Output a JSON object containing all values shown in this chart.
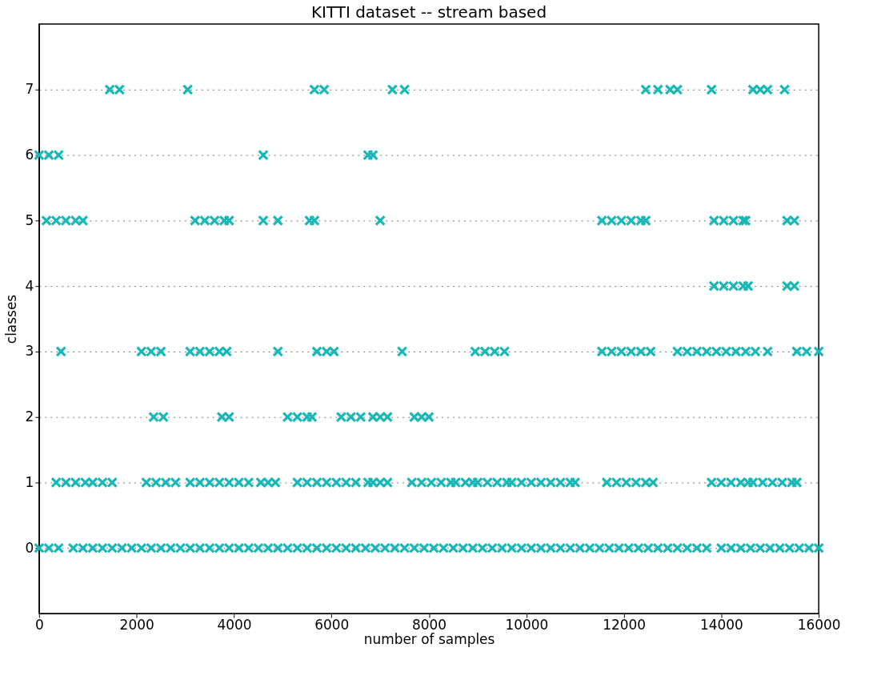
{
  "chart_data": {
    "type": "scatter",
    "title": "KITTI dataset -- stream based",
    "xlabel": "number of samples",
    "ylabel": "classes",
    "xlim": [
      0,
      16000
    ],
    "xticks": [
      0,
      2000,
      4000,
      6000,
      8000,
      10000,
      12000,
      14000,
      16000
    ],
    "ylim": [
      -1,
      8
    ],
    "yticks": [
      0,
      1,
      2,
      3,
      4,
      5,
      6,
      7
    ],
    "grid": "y",
    "marker": "cross",
    "legend": false,
    "series": [
      {
        "color": "#19b8b8",
        "x": [
          0,
          200,
          400,
          700,
          900,
          1100,
          1300,
          1500,
          1700,
          1900,
          2100,
          2300,
          2500,
          2700,
          2900,
          3100,
          3300,
          3500,
          3700,
          3900,
          4100,
          4300,
          4500,
          4700,
          4900,
          5100,
          5300,
          5500,
          5700,
          5900,
          6100,
          6300,
          6500,
          6700,
          6900,
          7100,
          7300,
          7500,
          7700,
          7900,
          8100,
          8300,
          8500,
          8700,
          8900,
          9100,
          9300,
          9500,
          9700,
          9900,
          10100,
          10300,
          10500,
          10700,
          10900,
          11100,
          11300,
          11500,
          11700,
          11900,
          12100,
          12300,
          12500,
          12700,
          12900,
          13100,
          13300,
          13500,
          13700,
          14000,
          14200,
          14400,
          14600,
          14800,
          15000,
          15200,
          15400,
          15600,
          15800,
          16000
        ],
        "values": [
          0,
          0,
          0,
          0,
          0,
          0,
          0,
          0,
          0,
          0,
          0,
          0,
          0,
          0,
          0,
          0,
          0,
          0,
          0,
          0,
          0,
          0,
          0,
          0,
          0,
          0,
          0,
          0,
          0,
          0,
          0,
          0,
          0,
          0,
          0,
          0,
          0,
          0,
          0,
          0,
          0,
          0,
          0,
          0,
          0,
          0,
          0,
          0,
          0,
          0,
          0,
          0,
          0,
          0,
          0,
          0,
          0,
          0,
          0,
          0,
          0,
          0,
          0,
          0,
          0,
          0,
          0,
          0,
          0,
          0,
          0,
          0,
          0,
          0,
          0,
          0,
          0,
          0,
          0,
          0
        ]
      },
      {
        "color": "#19b8b8",
        "x": [
          350,
          550,
          750,
          950,
          1100,
          1300,
          1500,
          2200,
          2400,
          2600,
          2800,
          3100,
          3300,
          3500,
          3700,
          3900,
          4100,
          4300,
          4550,
          4700,
          4850,
          5300,
          5500,
          5700,
          5900,
          6100,
          6300,
          6500,
          6750,
          6850,
          7000,
          7150,
          7650,
          7850,
          8050,
          8250,
          8450,
          8550,
          8750,
          8900,
          9000,
          9200,
          9400,
          9600,
          9700,
          9900,
          10100,
          10300,
          10500,
          10700,
          10900,
          11000,
          11650,
          11850,
          12050,
          12250,
          12450,
          12600,
          13800,
          14000,
          14200,
          14400,
          14550,
          14650,
          14850,
          15050,
          15250,
          15450,
          15550
        ],
        "values": [
          1,
          1,
          1,
          1,
          1,
          1,
          1,
          1,
          1,
          1,
          1,
          1,
          1,
          1,
          1,
          1,
          1,
          1,
          1,
          1,
          1,
          1,
          1,
          1,
          1,
          1,
          1,
          1,
          1,
          1,
          1,
          1,
          1,
          1,
          1,
          1,
          1,
          1,
          1,
          1,
          1,
          1,
          1,
          1,
          1,
          1,
          1,
          1,
          1,
          1,
          1,
          1,
          1,
          1,
          1,
          1,
          1,
          1,
          1,
          1,
          1,
          1,
          1,
          1,
          1,
          1,
          1,
          1,
          1
        ]
      },
      {
        "color": "#19b8b8",
        "x": [
          2350,
          2550,
          3750,
          3900,
          5100,
          5300,
          5500,
          5600,
          6200,
          6400,
          6600,
          6850,
          7000,
          7150,
          7700,
          7850,
          8000
        ],
        "values": [
          2,
          2,
          2,
          2,
          2,
          2,
          2,
          2,
          2,
          2,
          2,
          2,
          2,
          2,
          2,
          2,
          2
        ]
      },
      {
        "color": "#19b8b8",
        "x": [
          450,
          2100,
          2300,
          2500,
          3100,
          3300,
          3500,
          3700,
          3850,
          4900,
          5700,
          5900,
          6050,
          7450,
          8950,
          9150,
          9350,
          9550,
          11550,
          11750,
          11950,
          12150,
          12350,
          12550,
          13100,
          13300,
          13500,
          13700,
          13900,
          14100,
          14300,
          14500,
          14700,
          14950,
          15550,
          15750,
          16000
        ],
        "values": [
          3,
          3,
          3,
          3,
          3,
          3,
          3,
          3,
          3,
          3,
          3,
          3,
          3,
          3,
          3,
          3,
          3,
          3,
          3,
          3,
          3,
          3,
          3,
          3,
          3,
          3,
          3,
          3,
          3,
          3,
          3,
          3,
          3,
          3,
          3,
          3,
          3
        ]
      },
      {
        "color": "#19b8b8",
        "x": [
          13850,
          14050,
          14250,
          14450,
          14550,
          15350,
          15500
        ],
        "values": [
          4,
          4,
          4,
          4,
          4,
          4,
          4
        ]
      },
      {
        "color": "#19b8b8",
        "x": [
          150,
          350,
          550,
          750,
          900,
          3200,
          3400,
          3600,
          3800,
          3900,
          4600,
          4900,
          5550,
          5650,
          7000,
          11550,
          11750,
          11950,
          12150,
          12350,
          12450,
          13850,
          14050,
          14250,
          14450,
          14500,
          15350,
          15500
        ],
        "values": [
          5,
          5,
          5,
          5,
          5,
          5,
          5,
          5,
          5,
          5,
          5,
          5,
          5,
          5,
          5,
          5,
          5,
          5,
          5,
          5,
          5,
          5,
          5,
          5,
          5,
          5,
          5,
          5
        ]
      },
      {
        "color": "#19b8b8",
        "x": [
          0,
          200,
          400,
          4600,
          6750,
          6850
        ],
        "values": [
          6,
          6,
          6,
          6,
          6,
          6
        ]
      },
      {
        "color": "#19b8b8",
        "x": [
          1450,
          1650,
          3050,
          5650,
          5850,
          7250,
          7500,
          12450,
          12700,
          12950,
          13100,
          13800,
          14650,
          14800,
          14950,
          15300
        ],
        "values": [
          7,
          7,
          7,
          7,
          7,
          7,
          7,
          7,
          7,
          7,
          7,
          7,
          7,
          7,
          7,
          7
        ]
      }
    ]
  }
}
